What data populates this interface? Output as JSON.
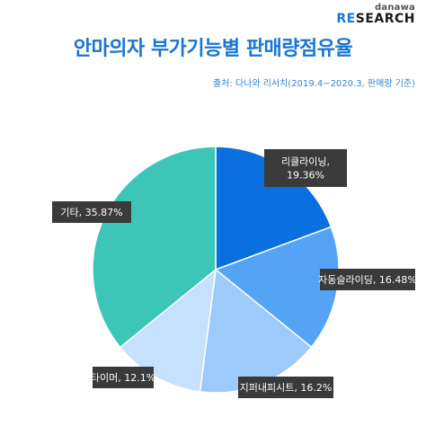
{
  "brand": {
    "top": "danawa",
    "re": "RE",
    "rest": "SEARCH"
  },
  "title": "안마의자 부가기능별 판매량점유율",
  "source": "출처: 다나와 리서치(2019.4~2020.3, 판매량 기준)",
  "chart_data": {
    "type": "pie",
    "title": "안마의자 부가기능별 판매량점유율",
    "slices": [
      {
        "name": "리클라이닝",
        "value": 19.36,
        "label_line1": "리클라이닝,",
        "label_line2": "19.36%",
        "color": "#0a6fdf"
      },
      {
        "name": "자동슬라이딩",
        "value": 16.48,
        "label_line1": "자동슬라이딩, 16.48%",
        "label_line2": "",
        "color": "#55a3f5"
      },
      {
        "name": "지퍼내피시트",
        "value": 16.2,
        "label_line1": "지퍼내피시트, 16.2%",
        "label_line2": "",
        "color": "#9bcafb"
      },
      {
        "name": "타이머",
        "value": 12.1,
        "label_line1": "타이머, 12.1%",
        "label_line2": "",
        "color": "#c5e1fd"
      },
      {
        "name": "기타",
        "value": 35.87,
        "label_line1": "기타, 35.87%",
        "label_line2": "",
        "color": "#3cc6b8"
      }
    ]
  }
}
